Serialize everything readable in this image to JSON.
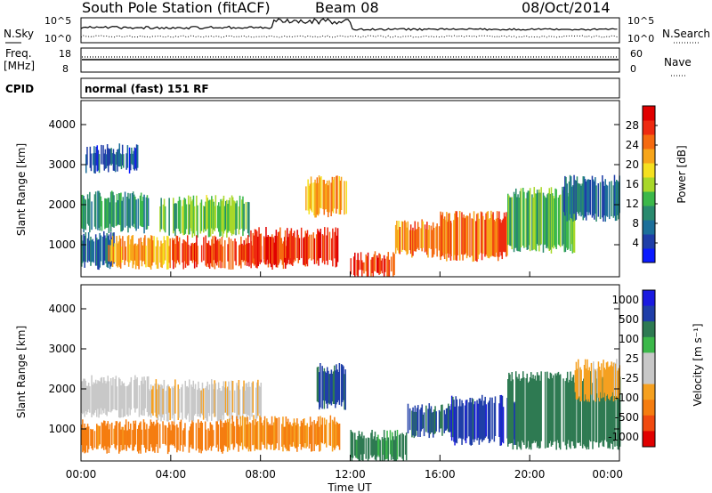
{
  "header": {
    "station": "South Pole Station (fitACF)",
    "beam": "Beam 08",
    "date": "08/Oct/2014"
  },
  "noise_panel": {
    "left_label": "N.Sky",
    "right_label": "N.Search",
    "left_ticks": [
      "10^5",
      "10^0"
    ],
    "right_ticks": [
      "10^5",
      "10^0"
    ]
  },
  "freq_panel": {
    "label_line1": "Freq.",
    "label_line2": "[MHz]",
    "left_ticks": [
      "18",
      "8"
    ],
    "right_ticks": [
      "60",
      "0"
    ],
    "right_label": "Nave"
  },
  "cpid_panel": {
    "label": "CPID",
    "text": "normal (fast) 151 RF"
  },
  "colors": {
    "power": [
      "#0a1aff",
      "#1f3ea8",
      "#1c6f9a",
      "#2a8a6e",
      "#3cb84a",
      "#a8d82a",
      "#f5e020",
      "#f7a51a",
      "#f56a10",
      "#ee2a10",
      "#e00000"
    ],
    "velocity": [
      "#e00000",
      "#f04a10",
      "#f57d10",
      "#f5a020",
      "#c8c8c8",
      "#c8c8c8",
      "#3cb84a",
      "#2e7a52",
      "#1f3ea8",
      "#1a1ae0"
    ]
  },
  "chart_data": [
    {
      "type": "heatmap",
      "panel": "power",
      "ylabel": "Slant Range [km]",
      "yticks": [
        "1000",
        "2000",
        "3000",
        "4000"
      ],
      "ylim": [
        200,
        4600
      ],
      "xlim": [
        0,
        24
      ],
      "colorbar": {
        "label": "Power [dB]",
        "ticks": [
          "4",
          "8",
          "12",
          "16",
          "20",
          "24",
          "28"
        ],
        "range": [
          0,
          32
        ]
      },
      "regions": [
        {
          "t0": 0.0,
          "t1": 1.5,
          "r0": 500,
          "r1": 1200,
          "value": 6
        },
        {
          "t0": 0.0,
          "t1": 3.0,
          "r0": 1400,
          "r1": 2200,
          "value": 10
        },
        {
          "t0": 0.2,
          "t1": 2.5,
          "r0": 2900,
          "r1": 3400,
          "value": 5
        },
        {
          "t0": 1.2,
          "t1": 4.0,
          "r0": 500,
          "r1": 1100,
          "value": 22
        },
        {
          "t0": 3.5,
          "t1": 7.5,
          "r0": 1300,
          "r1": 2100,
          "value": 14
        },
        {
          "t0": 4.0,
          "t1": 9.5,
          "r0": 500,
          "r1": 1100,
          "value": 28
        },
        {
          "t0": 7.5,
          "t1": 11.5,
          "r0": 550,
          "r1": 1300,
          "value": 29
        },
        {
          "t0": 10.0,
          "t1": 11.8,
          "r0": 1800,
          "r1": 2600,
          "value": 22
        },
        {
          "t0": 12.0,
          "t1": 14.0,
          "r0": 250,
          "r1": 700,
          "value": 29
        },
        {
          "t0": 14.0,
          "t1": 16.5,
          "r0": 800,
          "r1": 1500,
          "value": 24
        },
        {
          "t0": 16.0,
          "t1": 19.0,
          "r0": 700,
          "r1": 1700,
          "value": 26
        },
        {
          "t0": 19.0,
          "t1": 22.0,
          "r0": 900,
          "r1": 2300,
          "value": 12
        },
        {
          "t0": 21.5,
          "t1": 24.0,
          "r0": 1700,
          "r1": 2600,
          "value": 6
        }
      ]
    },
    {
      "type": "heatmap",
      "panel": "velocity",
      "ylabel": "Slant Range [km]",
      "yticks": [
        "1000",
        "2000",
        "3000",
        "4000"
      ],
      "ylim": [
        200,
        4600
      ],
      "xlim": [
        0,
        24
      ],
      "xlabel": "Time UT",
      "xticks": [
        "00:00",
        "04:00",
        "08:00",
        "12:00",
        "16:00",
        "20:00",
        "00:00"
      ],
      "colorbar": {
        "label": "Velocity [m s⁻¹]",
        "ticks": [
          "1000",
          "500",
          "100",
          "25",
          "-25",
          "-100",
          "-500",
          "-1000"
        ]
      },
      "regions": [
        {
          "t0": 0.0,
          "t1": 3.0,
          "r0": 1400,
          "r1": 2200,
          "value": -10
        },
        {
          "t0": 0.0,
          "t1": 2.0,
          "r0": 500,
          "r1": 1100,
          "value": -150
        },
        {
          "t0": 2.0,
          "t1": 6.5,
          "r0": 500,
          "r1": 1100,
          "value": -300
        },
        {
          "t0": 3.0,
          "t1": 8.0,
          "r0": 1300,
          "r1": 2100,
          "value": -20
        },
        {
          "t0": 6.5,
          "t1": 11.5,
          "r0": 550,
          "r1": 1200,
          "value": -120
        },
        {
          "t0": 10.5,
          "t1": 11.8,
          "r0": 1600,
          "r1": 2500,
          "value": 700
        },
        {
          "t0": 12.0,
          "t1": 14.5,
          "r0": 250,
          "r1": 850,
          "value": 150
        },
        {
          "t0": 14.5,
          "t1": 16.5,
          "r0": 900,
          "r1": 1500,
          "value": 600
        },
        {
          "t0": 16.5,
          "t1": 19.5,
          "r0": 700,
          "r1": 1700,
          "value": 800
        },
        {
          "t0": 19.0,
          "t1": 24.0,
          "r0": 600,
          "r1": 2300,
          "value": 200
        },
        {
          "t0": 22.0,
          "t1": 24.0,
          "r0": 1800,
          "r1": 2600,
          "value": -30
        }
      ]
    }
  ]
}
